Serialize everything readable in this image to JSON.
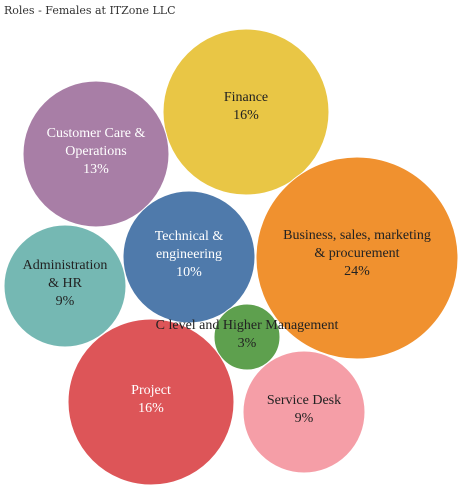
{
  "chart_data": {
    "type": "bubble",
    "title": "Roles - Females at ITZone LLC",
    "grid": false,
    "legend": "none",
    "series": [
      {
        "name": "Finance",
        "label_lines": [
          "Finance"
        ],
        "value": 16,
        "value_label": "16%",
        "color": "#e9c645",
        "text_color": "#222222"
      },
      {
        "name": "Customer Care & Operations",
        "label_lines": [
          "Customer Care &",
          "Operations"
        ],
        "value": 13,
        "value_label": "13%",
        "color": "#a87ea6",
        "text_color": "#ffffff"
      },
      {
        "name": "Business, sales, marketing & procurement",
        "label_lines": [
          "Business, sales, marketing",
          "& procurement"
        ],
        "value": 24,
        "value_label": "24%",
        "color": "#f0912f",
        "text_color": "#222222"
      },
      {
        "name": "Technical & engineering",
        "label_lines": [
          "Technical &",
          "engineering"
        ],
        "value": 10,
        "value_label": "10%",
        "color": "#4f7aab",
        "text_color": "#ffffff"
      },
      {
        "name": "Administration & HR",
        "label_lines": [
          "Administration",
          "& HR"
        ],
        "value": 9,
        "value_label": "9%",
        "color": "#75b8b3",
        "text_color": "#222222"
      },
      {
        "name": "C level and Higher Management",
        "label_lines": [
          "C level and Higher Management"
        ],
        "value": 3,
        "value_label": "3%",
        "color": "#5ea04e",
        "text_color": "#222222"
      },
      {
        "name": "Project",
        "label_lines": [
          "Project"
        ],
        "value": 16,
        "value_label": "16%",
        "color": "#dd5558",
        "text_color": "#ffffff"
      },
      {
        "name": "Service Desk",
        "label_lines": [
          "Service Desk"
        ],
        "value": 9,
        "value_label": "9%",
        "color": "#f59ea7",
        "text_color": "#222222"
      }
    ]
  }
}
